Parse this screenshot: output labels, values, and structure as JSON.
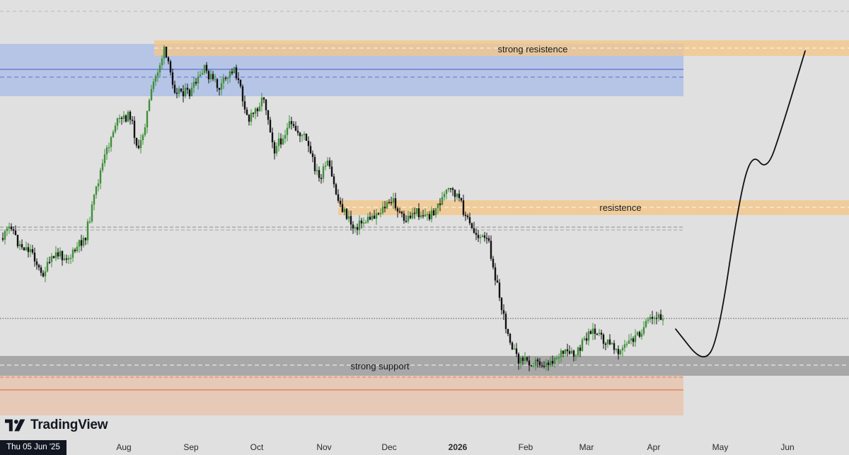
{
  "chart_data": {
    "type": "candlestick",
    "watermark": "TradingView",
    "crosshair_date": "Thu 05 Jun '25",
    "x_axis": {
      "labels": [
        "Aug",
        "Sep",
        "Oct",
        "Nov",
        "Dec",
        "2026",
        "Feb",
        "Mar",
        "Apr",
        "May",
        "Jun"
      ],
      "bold_label": "2026"
    },
    "zones": [
      {
        "label": "strong resistence",
        "color": "#f5c684",
        "side_color": "#9db4ea"
      },
      {
        "label": "resistence",
        "color": "#f5c684"
      },
      {
        "label": "strong support",
        "color": "#9a9a9a",
        "lower_color": "#e9b99a"
      }
    ],
    "price_path": [
      [
        "2025-06-05",
        0.3
      ],
      [
        "2025-06-09",
        0.35
      ],
      [
        "2025-06-12",
        0.28
      ],
      [
        "2025-06-19",
        0.25
      ],
      [
        "2025-06-23",
        0.16
      ],
      [
        "2025-06-30",
        0.24
      ],
      [
        "2025-07-07",
        0.23
      ],
      [
        "2025-07-14",
        0.31
      ],
      [
        "2025-07-21",
        0.55
      ],
      [
        "2025-07-28",
        0.73
      ],
      [
        "2025-08-04",
        0.76
      ],
      [
        "2025-08-08",
        0.62
      ],
      [
        "2025-08-15",
        0.88
      ],
      [
        "2025-08-20",
        1.0
      ],
      [
        "2025-08-25",
        0.86
      ],
      [
        "2025-09-01",
        0.84
      ],
      [
        "2025-09-08",
        0.93
      ],
      [
        "2025-09-15",
        0.86
      ],
      [
        "2025-09-22",
        0.94
      ],
      [
        "2025-09-29",
        0.74
      ],
      [
        "2025-10-06",
        0.83
      ],
      [
        "2025-10-11",
        0.63
      ],
      [
        "2025-10-18",
        0.72
      ],
      [
        "2025-10-25",
        0.68
      ],
      [
        "2025-11-01",
        0.52
      ],
      [
        "2025-11-05",
        0.58
      ],
      [
        "2025-11-10",
        0.44
      ],
      [
        "2025-11-17",
        0.34
      ],
      [
        "2025-11-24",
        0.37
      ],
      [
        "2025-12-01",
        0.41
      ],
      [
        "2025-12-06",
        0.44
      ],
      [
        "2025-12-11",
        0.36
      ],
      [
        "2025-12-16",
        0.4
      ],
      [
        "2025-12-23",
        0.38
      ],
      [
        "2026-01-01",
        0.48
      ],
      [
        "2026-01-05",
        0.46
      ],
      [
        "2026-01-12",
        0.33
      ],
      [
        "2026-01-20",
        0.28
      ],
      [
        "2026-01-27",
        0.0
      ],
      [
        "2026-02-02",
        -0.15
      ],
      [
        "2026-02-09",
        -0.16
      ],
      [
        "2026-02-16",
        -0.17
      ],
      [
        "2026-02-23",
        -0.13
      ],
      [
        "2026-03-02",
        -0.14
      ],
      [
        "2026-03-09",
        -0.04
      ],
      [
        "2026-03-16",
        -0.09
      ],
      [
        "2026-03-23",
        -0.12
      ],
      [
        "2026-03-30",
        -0.07
      ],
      [
        "2026-04-06",
        -0.01
      ],
      [
        "2026-04-12",
        0.01
      ]
    ],
    "projection": [
      [
        "2026-04-18",
        -0.04
      ],
      [
        "2026-05-01",
        -0.17
      ],
      [
        "2026-05-08",
        -0.08
      ],
      [
        "2026-05-18",
        0.45
      ],
      [
        "2026-05-24",
        0.62
      ],
      [
        "2026-05-31",
        0.55
      ],
      [
        "2026-06-07",
        0.71
      ],
      [
        "2026-06-18",
        1.0
      ]
    ]
  }
}
